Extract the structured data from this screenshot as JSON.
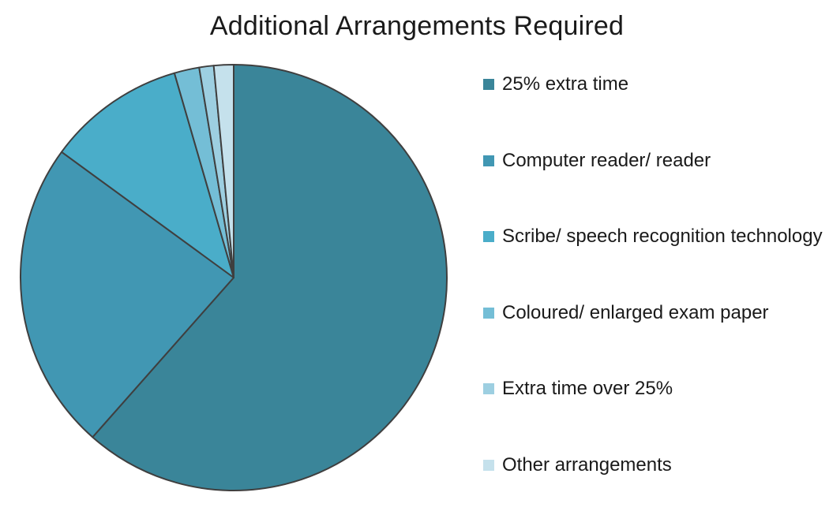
{
  "chart_data": {
    "type": "pie",
    "title": "Additional Arrangements Required",
    "legend_position": "right",
    "slices": [
      {
        "label": "25% extra time",
        "value": 61.7,
        "color": "#3a8599"
      },
      {
        "label": "Computer reader/ reader",
        "value": 23.6,
        "color": "#4197b3"
      },
      {
        "label": "Scribe/ speech recognition technology",
        "value": 10.5,
        "color": "#4aadc9"
      },
      {
        "label": "Coloured/ enlarged exam paper",
        "value": 1.9,
        "color": "#74bed6"
      },
      {
        "label": "Extra time over 25%",
        "value": 1.1,
        "color": "#9dcfe1"
      },
      {
        "label": "Other arrangements",
        "value": 1.5,
        "color": "#c5e1ec"
      }
    ]
  }
}
